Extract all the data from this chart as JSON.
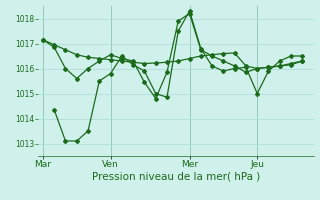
{
  "title": "",
  "xlabel": "Pression niveau de la mer( hPa )",
  "background_color": "#cff0eb",
  "grid_color": "#a8ddd8",
  "line_color": "#1a6b1a",
  "vline_color": "#6b9b6b",
  "ylim": [
    1012.5,
    1018.5
  ],
  "xlim": [
    -0.2,
    12.0
  ],
  "day_labels": [
    "Mar",
    "Ven",
    "Mer",
    "Jeu"
  ],
  "day_positions": [
    0.0,
    3.0,
    6.5,
    9.5
  ],
  "yticks": [
    1013,
    1014,
    1015,
    1016,
    1017,
    1018
  ],
  "vline_positions": [
    0.0,
    3.0,
    6.5,
    9.5
  ],
  "series1_x": [
    0.0,
    0.5,
    1.0,
    1.5,
    2.0,
    2.5,
    3.0,
    3.5,
    4.0,
    4.5,
    5.0,
    5.5,
    6.0,
    6.5,
    7.0,
    7.5,
    8.0,
    8.5,
    9.0,
    9.5,
    10.0,
    10.5,
    11.0,
    11.5
  ],
  "series1_y": [
    1017.15,
    1016.95,
    1016.75,
    1016.55,
    1016.45,
    1016.4,
    1016.35,
    1016.3,
    1016.25,
    1016.2,
    1016.22,
    1016.25,
    1016.3,
    1016.4,
    1016.5,
    1016.55,
    1016.6,
    1016.62,
    1016.1,
    1016.0,
    1016.05,
    1016.1,
    1016.2,
    1016.3
  ],
  "series2_x": [
    0.0,
    0.5,
    1.0,
    1.5,
    2.0,
    2.5,
    3.0,
    3.5,
    4.0,
    4.5,
    5.0,
    5.5,
    6.0,
    6.5,
    7.0,
    7.5,
    8.0,
    8.5,
    9.0,
    9.5,
    10.0,
    10.5,
    11.0,
    11.5
  ],
  "series2_y": [
    1017.15,
    1016.85,
    1016.0,
    1015.6,
    1016.0,
    1016.3,
    1016.55,
    1016.4,
    1016.3,
    1015.45,
    1014.8,
    1015.85,
    1017.9,
    1018.2,
    1016.75,
    1016.5,
    1016.3,
    1016.1,
    1015.85,
    1016.0,
    1016.05,
    1016.1,
    1016.15,
    1016.3
  ],
  "series3_x": [
    0.5,
    1.0,
    1.5,
    2.0,
    2.5,
    3.0,
    3.5,
    4.0,
    4.5,
    5.0,
    5.5,
    6.0,
    6.5,
    7.0,
    7.5,
    8.0,
    8.5,
    9.0,
    9.5,
    10.0,
    10.5,
    11.0,
    11.5
  ],
  "series3_y": [
    1014.35,
    1013.1,
    1013.1,
    1013.5,
    1015.5,
    1015.8,
    1016.5,
    1016.15,
    1015.9,
    1015.0,
    1014.85,
    1017.5,
    1018.3,
    1016.8,
    1016.1,
    1015.9,
    1016.0,
    1016.05,
    1015.0,
    1015.9,
    1016.3,
    1016.5,
    1016.5
  ]
}
